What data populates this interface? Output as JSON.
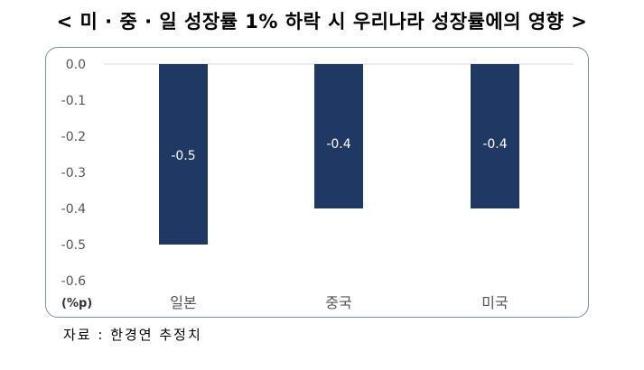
{
  "chart_data": {
    "type": "bar",
    "title": "< 미 · 중 · 일 성장률 1% 하락 시 우리나라 성장률에의 영향 >",
    "ylabel": "(%p)",
    "xlabel": "",
    "categories": [
      "일본",
      "중국",
      "미국"
    ],
    "values": [
      -0.5,
      -0.4,
      -0.4
    ],
    "data_labels": [
      "-0.5",
      "-0.4",
      "-0.4"
    ],
    "yticks": [
      "0.0",
      "-0.1",
      "-0.2",
      "-0.3",
      "-0.4",
      "-0.5",
      "-0.6"
    ],
    "ylim": [
      -0.6,
      0.0
    ],
    "bar_color": "#1f3864",
    "grid": false,
    "legend": "none"
  },
  "source": "자료 : 한경연 추정치"
}
